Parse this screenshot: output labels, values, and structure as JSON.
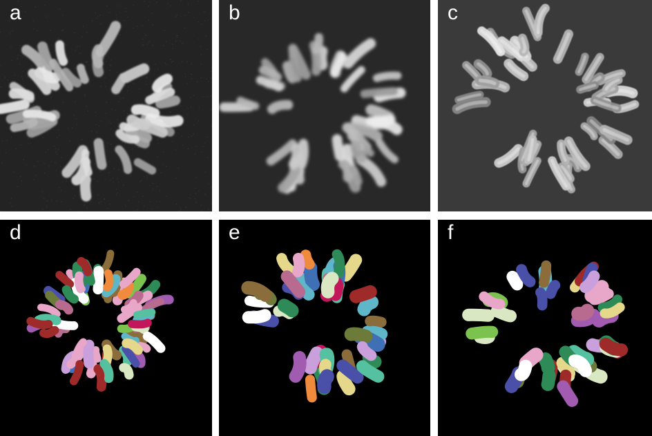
{
  "panels": [
    {
      "label": "a",
      "type": "raw",
      "background": "#232323",
      "label_color": "#ffffff"
    },
    {
      "label": "b",
      "type": "smoothed",
      "background": "#282828",
      "label_color": "#ffffff"
    },
    {
      "label": "c",
      "type": "rendered",
      "background": "#3a3a3a",
      "label_color": "#ffffff"
    },
    {
      "label": "d",
      "type": "segmented",
      "background": "#000000",
      "label_color": "#ffffff"
    },
    {
      "label": "e",
      "type": "segmented",
      "background": "#000000",
      "label_color": "#ffffff"
    },
    {
      "label": "f",
      "type": "segmented",
      "background": "#000000",
      "label_color": "#ffffff"
    }
  ],
  "segment_palette": [
    "#e8a6c8",
    "#c2185b",
    "#4a4fa8",
    "#5fb6c9",
    "#7cc24f",
    "#e6d88a",
    "#a15bb0",
    "#2e8b57",
    "#f08a3c",
    "#9e2a2a",
    "#6c7a3a",
    "#d9e8c2",
    "#3f6fb5",
    "#b86b8f",
    "#ffffff",
    "#8a6d3b",
    "#56c1a0",
    "#c9a0dc"
  ]
}
